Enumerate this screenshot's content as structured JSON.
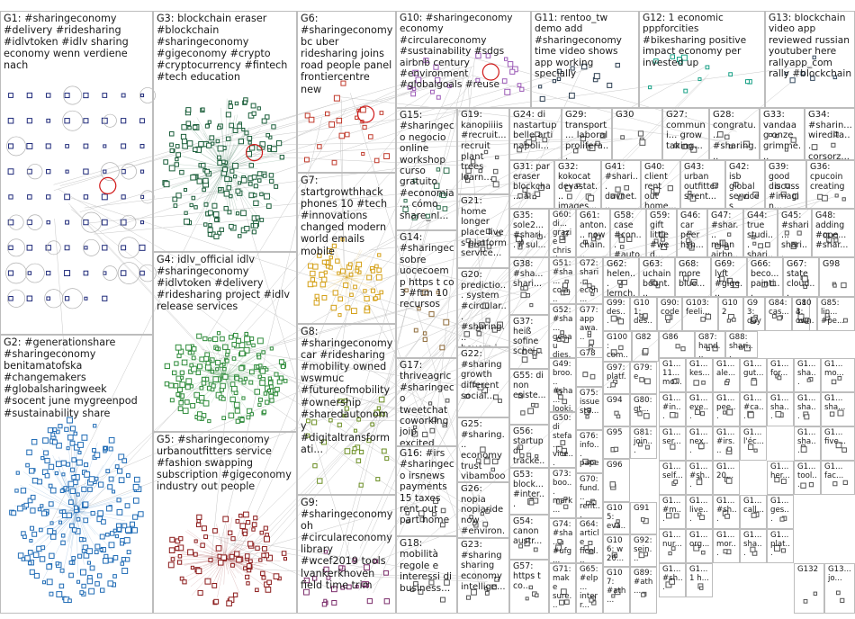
{
  "groups": [
    {
      "id": "G1",
      "label": "G1: #sharingeconomy #delivery #ridesharing #idlvtoken #idlv sharing economy wenn verdiene nach",
      "color": "#1f2a7a"
    },
    {
      "id": "G2",
      "label": "G2: #generationshare #sharingeconomy benitamatofska #changemakers #globalsharingweek #socent june mygreenpod #sustainability share",
      "color": "#1f6bb5"
    },
    {
      "id": "G3",
      "label": "G3: blockchain eraser #blockchain #sharingeconomy #gigeconomy #crypto #cryptocurrency #fintech #tech education",
      "color": "#1b5e3a"
    },
    {
      "id": "G4",
      "label": "G4: idlv_official idlv #sharingeconomy #idlvtoken #delivery #ridesharing project #idlv release services",
      "color": "#2e8b3a"
    },
    {
      "id": "G5",
      "label": "G5: #sharingeconomy urbanoutfitters service #fashion swapping subscription #gigeconomy industry out people",
      "color": "#8b1a1a"
    },
    {
      "id": "G6",
      "label": "G6: #sharingeconomy bc uber ridesharing joins road people panel frontiercentre new",
      "color": "#c0392b"
    },
    {
      "id": "G7",
      "label": "G7: startgrowthhack phones 10 #tech #innovations changed modern world emails mobile",
      "color": "#d4a017"
    },
    {
      "id": "G8",
      "label": "G8: #sharingeconomy car #ridesharing #mobility owned wswmuc #futureofmobility #ownership #sharedautonomy #digitaltransformati...",
      "color": "#6b8e23"
    },
    {
      "id": "G9",
      "label": "G9: #sharingeconomy oh #circulareconomy library #wcef2019 tools lvankerkhoven field time trim",
      "color": "#7b2d6b"
    },
    {
      "id": "G10",
      "label": "G10: #sharingeconomy economy #circulareconomy #sustainability #sdgs airbnb century #environment #globalgoals #reuse",
      "color": "#9b59b6"
    },
    {
      "id": "G11",
      "label": "G11: rentoo_tw demo add #sharingeconomy time video shows app working specially",
      "color": "#2c3e50"
    },
    {
      "id": "G12",
      "label": "G12: 1 economic pppforcities #bikesharing positive impact economy per invested up",
      "color": "#16a085"
    },
    {
      "id": "G13",
      "label": "G13: blockchain video app reviewed russian youtuber here rallyapp_com rally #blockchain",
      "color": "#34495e"
    },
    {
      "id": "G14",
      "label": "G14: #sharingec sobre uocecoemp https t co 3 #ftm 10 recursos",
      "color": "#8e6b3a"
    },
    {
      "id": "G15",
      "label": "G15: #sharingeco negocio online workshop curso gratuito #economia... cómo share_nl...",
      "color": "#2f6f4f"
    },
    {
      "id": "G16",
      "label": "G16: #irs #sharingeco irsnews payments 15 taxes rent out part home",
      "color": "#555555"
    },
    {
      "id": "G17",
      "label": "G17: thriveagric #sharingeco tweetchat coworking joip excited having...",
      "color": "#555555"
    },
    {
      "id": "G18",
      "label": "G18: mobilità regole e interessi di business...",
      "color": "#555555"
    },
    {
      "id": "G19",
      "label": "G19: kanopiiiis #recruit... recruit plant trees learn...",
      "color": "#555555"
    },
    {
      "id": "G20",
      "label": "G20: predictio... system #circular... #sharing... hoverr_j...",
      "color": "#555555"
    },
    {
      "id": "G21",
      "label": "G21: home longer place live s platform service...",
      "color": "#555555"
    },
    {
      "id": "G22",
      "label": "G22: #sharing growth different social...",
      "color": "#555555"
    },
    {
      "id": "G23",
      "label": "G23: #sharing sharing economy intellige...",
      "color": "#555555"
    },
    {
      "id": "G24",
      "label": "G24: di nastartup belle arti napoli...",
      "color": "#555555"
    },
    {
      "id": "G25",
      "label": "G25: #sharing... economy trust vibamboo...",
      "color": "#555555"
    },
    {
      "id": "G26",
      "label": "G26: nopia nopiaride now #environ...",
      "color": "#555555"
    },
    {
      "id": "G27",
      "label": "G27: communi... grow taking...",
      "color": "#555555"
    },
    {
      "id": "G28",
      "label": "G28: congratu... #sharing... platform...",
      "color": "#555555"
    },
    {
      "id": "G29",
      "label": "G29: transport... laboral prolifera...",
      "color": "#555555"
    },
    {
      "id": "G30",
      "label": "G30",
      "color": "#555555"
    },
    {
      "id": "G31",
      "label": "G31: par eraser blockcha... à...",
      "color": "#555555"
    },
    {
      "id": "G32",
      "label": "G32: kokocat devastat... images...",
      "color": "#555555"
    },
    {
      "id": "G33",
      "label": "G33: vandaag onze grimme...",
      "color": "#555555"
    },
    {
      "id": "G34",
      "label": "G34: #sharin... wiredita... corsorz...",
      "color": "#555555"
    },
    {
      "id": "G35",
      "label": "G35: sole2... #shari... il sul...",
      "color": "#555555"
    },
    {
      "id": "G36",
      "label": "G36: cpucoin creating",
      "color": "#555555"
    },
    {
      "id": "G37",
      "label": "G37: heiß sofine schei...",
      "color": "#555555"
    },
    {
      "id": "G38",
      "label": "G38: #sha... shari...",
      "color": "#555555"
    },
    {
      "id": "G39",
      "label": "G39: good discuss #imagin...",
      "color": "#555555"
    },
    {
      "id": "G40",
      "label": "G40: client rent out home...",
      "color": "#555555"
    },
    {
      "id": "G41",
      "label": "G41: #shari... davnet... chang...",
      "color": "#555555"
    },
    {
      "id": "G42",
      "label": "G42: isb global services offers...",
      "color": "#555555"
    },
    {
      "id": "G43",
      "label": "G43: urban outfitters rent...",
      "color": "#555555"
    },
    {
      "id": "G44",
      "label": "G44: true studi... shari...",
      "color": "#555555"
    },
    {
      "id": "G45",
      "label": "G45: #shari... shari...",
      "color": "#555555"
    },
    {
      "id": "G46",
      "label": "G46: car peer hsh...",
      "color": "#555555"
    },
    {
      "id": "G47",
      "label": "G47: #shar... milan airbn...",
      "color": "#555555"
    },
    {
      "id": "G48",
      "label": "G48: adding #ope... #shar...",
      "color": "#555555"
    },
    {
      "id": "G49",
      "label": "G49: broo... #sha... looki...",
      "color": "#555555"
    },
    {
      "id": "G50",
      "label": "G50: di stefa... vice...",
      "color": "#555555"
    },
    {
      "id": "G51",
      "label": "G51: #sha... cola... peop...",
      "color": "#555555"
    },
    {
      "id": "G52",
      "label": "G52: #sha... genau dies...",
      "color": "#555555"
    },
    {
      "id": "G53",
      "label": "G53: block... #inter...",
      "color": "#555555"
    },
    {
      "id": "G54",
      "label": "G54: canon austr...",
      "color": "#555555"
    },
    {
      "id": "G55",
      "label": "G55: di non esiste...",
      "color": "#555555"
    },
    {
      "id": "G56",
      "label": "G56: startup di tracke...",
      "color": "#555555"
    },
    {
      "id": "G57",
      "label": "G57: https t co...",
      "color": "#555555"
    },
    {
      "id": "G58",
      "label": "G58: case #con... #auto...",
      "color": "#555555"
    },
    {
      "id": "G59",
      "label": "G59: gift little #wed...",
      "color": "#555555"
    },
    {
      "id": "G60",
      "label": "G60: di... grazie christi...",
      "color": "#555555"
    },
    {
      "id": "G61",
      "label": "G61: anton... now chain...",
      "color": "#555555"
    },
    {
      "id": "G62",
      "label": "G62: helen... lernch...",
      "color": "#555555"
    },
    {
      "id": "G63",
      "label": "G63: uchain bount...",
      "color": "#555555"
    },
    {
      "id": "G64",
      "label": "G64: article ficel...",
      "color": "#555555"
    },
    {
      "id": "G65",
      "label": "G65: #elp... interr...",
      "color": "#555555"
    },
    {
      "id": "G66",
      "label": "G66: beco... painti...",
      "color": "#555555"
    },
    {
      "id": "G67",
      "label": "G67: state cloud...",
      "color": "#555555"
    },
    {
      "id": "G68",
      "label": "G68: more blue...",
      "color": "#555555"
    },
    {
      "id": "G69",
      "label": "G69: lyft #gige...",
      "color": "#555555"
    },
    {
      "id": "G70",
      "label": "G70: fund... rent...",
      "color": "#555555"
    },
    {
      "id": "G71",
      "label": "G71: make sure...",
      "color": "#555555"
    },
    {
      "id": "G72",
      "label": "G72: shari... econ...",
      "color": "#555555"
    },
    {
      "id": "G73",
      "label": "G73: boo... mark...",
      "color": "#555555"
    },
    {
      "id": "G74",
      "label": "G74: #sha... #ufg...",
      "color": "#555555"
    },
    {
      "id": "G75",
      "label": "G75: issue sta...",
      "color": "#555555"
    },
    {
      "id": "G76",
      "label": "G76: info... pape...",
      "color": "#555555"
    },
    {
      "id": "G77",
      "label": "G77: app awa...",
      "color": "#555555"
    },
    {
      "id": "G78",
      "label": "G78",
      "color": "#555555"
    },
    {
      "id": "G79",
      "label": "G79: e",
      "color": "#555555"
    },
    {
      "id": "G80",
      "label": "G80: gt...",
      "color": "#555555"
    },
    {
      "id": "G81",
      "label": "G81: join...",
      "color": "#555555"
    },
    {
      "id": "G82",
      "label": "G82",
      "color": "#555555"
    },
    {
      "id": "G83",
      "label": "G83",
      "color": "#555555"
    },
    {
      "id": "G84",
      "label": "G84: cas...",
      "color": "#555555"
    },
    {
      "id": "G85",
      "label": "G85: lin... #pe...",
      "color": "#555555"
    },
    {
      "id": "G86",
      "label": "G86",
      "color": "#555555"
    },
    {
      "id": "G87",
      "label": "G87: hand...",
      "color": "#555555"
    },
    {
      "id": "G88",
      "label": "G88: shari...",
      "color": "#555555"
    },
    {
      "id": "G89",
      "label": "G89: #ath...",
      "color": "#555555"
    },
    {
      "id": "G90",
      "label": "G90: code",
      "color": "#555555"
    },
    {
      "id": "G91",
      "label": "G91",
      "color": "#555555"
    },
    {
      "id": "G92",
      "label": "G92: sein...",
      "color": "#555555"
    },
    {
      "id": "G93",
      "label": "G93: day",
      "color": "#555555"
    },
    {
      "id": "G94",
      "label": "G94",
      "color": "#555555"
    },
    {
      "id": "G95",
      "label": "G95",
      "color": "#555555"
    },
    {
      "id": "G96",
      "label": "G96",
      "color": "#555555"
    },
    {
      "id": "G97",
      "label": "G97: platf...",
      "color": "#555555"
    },
    {
      "id": "G98",
      "label": "G98",
      "color": "#555555"
    },
    {
      "id": "G99",
      "label": "G99: des...",
      "color": "#555555"
    },
    {
      "id": "G100",
      "label": "G100: com...",
      "color": "#555555"
    },
    {
      "id": "G101",
      "label": "G101: des...",
      "color": "#555555"
    },
    {
      "id": "G102",
      "label": "G102",
      "color": "#555555"
    },
    {
      "id": "G103",
      "label": "G103: feeli...",
      "color": "#555555"
    },
    {
      "id": "G104",
      "label": "G104: own...",
      "color": "#555555"
    },
    {
      "id": "G105",
      "label": "G105: eva...",
      "color": "#555555"
    },
    {
      "id": "G106",
      "label": "G106: w 20...",
      "color": "#555555"
    },
    {
      "id": "G107",
      "label": "G107: #ath...",
      "color": "#555555"
    },
    {
      "id": "G108",
      "label": "G1... 11... mo...",
      "color": "#555555"
    },
    {
      "id": "G109",
      "label": "G1... kes...",
      "color": "#555555"
    },
    {
      "id": "G110",
      "label": "G1... ale...",
      "color": "#555555"
    },
    {
      "id": "G111",
      "label": "G1... gut...",
      "color": "#555555"
    },
    {
      "id": "G112",
      "label": "G1... #in...",
      "color": "#555555"
    },
    {
      "id": "G113",
      "label": "G1... eve...",
      "color": "#555555"
    },
    {
      "id": "G114",
      "label": "G1... pee...",
      "color": "#555555"
    },
    {
      "id": "G115",
      "label": "G1... #ca...",
      "color": "#555555"
    },
    {
      "id": "G116",
      "label": "G1... ser...",
      "color": "#555555"
    },
    {
      "id": "G117",
      "label": "G1... nex...",
      "color": "#555555"
    },
    {
      "id": "G118",
      "label": "G1... #irs...",
      "color": "#555555"
    },
    {
      "id": "G119",
      "label": "G1... l'éc...",
      "color": "#555555"
    },
    {
      "id": "G120",
      "label": "G1... five...",
      "color": "#555555"
    },
    {
      "id": "G121",
      "label": "G1... self...",
      "color": "#555555"
    },
    {
      "id": "G122",
      "label": "G1... #sh...",
      "color": "#555555"
    },
    {
      "id": "G123",
      "label": "G1... 20...",
      "color": "#555555"
    },
    {
      "id": "G124",
      "label": "G1... fac...",
      "color": "#555555"
    },
    {
      "id": "G125",
      "label": "G1... her...",
      "color": "#555555"
    },
    {
      "id": "G126",
      "label": "G1... tool...",
      "color": "#555555"
    },
    {
      "id": "G127",
      "label": "G1... #m...",
      "color": "#555555"
    },
    {
      "id": "G128",
      "label": "G1... live...",
      "color": "#555555"
    },
    {
      "id": "G129",
      "label": "G1... #sh...",
      "color": "#555555"
    },
    {
      "id": "G130",
      "label": "G1... call...",
      "color": "#555555"
    },
    {
      "id": "G131",
      "label": "G1... ges...",
      "color": "#555555"
    },
    {
      "id": "G132",
      "label": "G132",
      "color": "#555555"
    },
    {
      "id": "G133",
      "label": "G13... jo...",
      "color": "#555555"
    },
    {
      "id": "G134",
      "label": "G1... nur...",
      "color": "#555555"
    },
    {
      "id": "G135",
      "label": "G1... org...",
      "color": "#555555"
    },
    {
      "id": "G136",
      "label": "G1... mor...",
      "color": "#555555"
    },
    {
      "id": "G137",
      "label": "G1... sha...",
      "color": "#555555"
    },
    {
      "id": "G138",
      "label": "G1... plat...",
      "color": "#555555"
    },
    {
      "id": "G139",
      "label": "G1... #sh...",
      "color": "#555555"
    },
    {
      "id": "G140",
      "label": "G1... 1 h...",
      "color": "#555555"
    },
    {
      "id": "G141",
      "label": "G1... sha...",
      "color": "#555555"
    },
    {
      "id": "G142",
      "label": "G1... sha...",
      "color": "#555555"
    },
    {
      "id": "G143",
      "label": "G1... sha...",
      "color": "#555555"
    },
    {
      "id": "G144",
      "label": "G1... sha...",
      "color": "#555555"
    },
    {
      "id": "G145",
      "label": "G1... for...",
      "color": "#555555"
    },
    {
      "id": "G146",
      "label": "G1... sha...",
      "color": "#555555"
    },
    {
      "id": "G147",
      "label": "G1... mo...",
      "color": "#555555"
    }
  ]
}
